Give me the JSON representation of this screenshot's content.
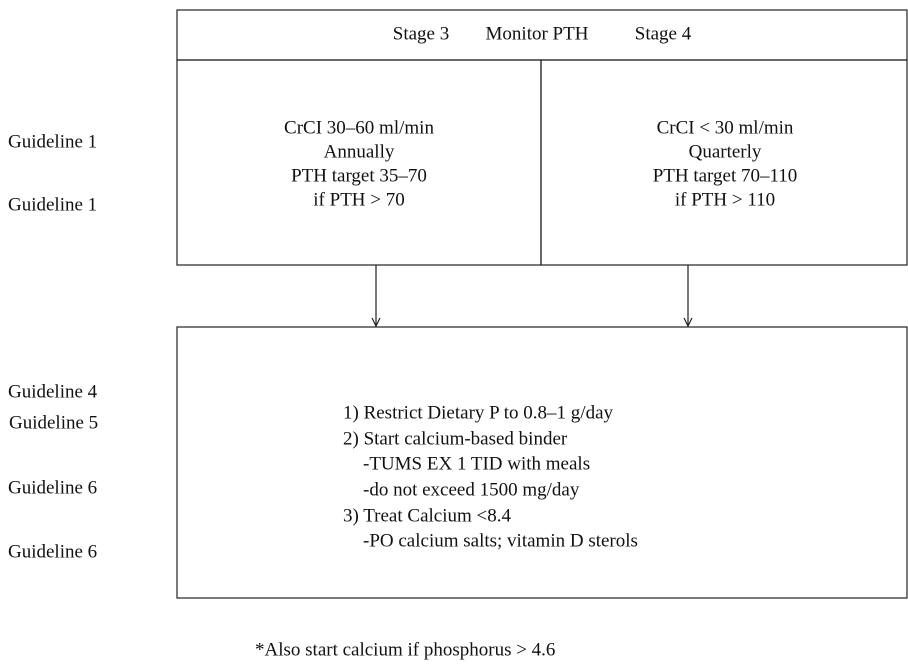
{
  "header": {
    "left": "Stage 3",
    "center": "Monitor PTH",
    "right": "Stage 4"
  },
  "stage3": [
    "CrCI 30–60 ml/min",
    "Annually",
    "PTH target 35–70",
    "if PTH > 70"
  ],
  "stage4": [
    "CrCI < 30 ml/min",
    "Quarterly",
    "PTH target 70–110",
    "if PTH > 110"
  ],
  "side_labels_top": [
    "Guideline 1",
    "Guideline 1"
  ],
  "side_labels_bottom": [
    "Guideline 4",
    "Guideline 5",
    "Guideline 6",
    "Guideline 6"
  ],
  "treatment": [
    "1) Restrict Dietary P to 0.8–1 g/day",
    "2) Start calcium-based binder",
    "-TUMS EX 1 TID with meals",
    "-do not exceed 1500 mg/day",
    "3) Treat Calcium <8.4",
    "-PO calcium salts; vitamin D sterols"
  ],
  "footnote": "*Also start calcium if phosphorus > 4.6"
}
